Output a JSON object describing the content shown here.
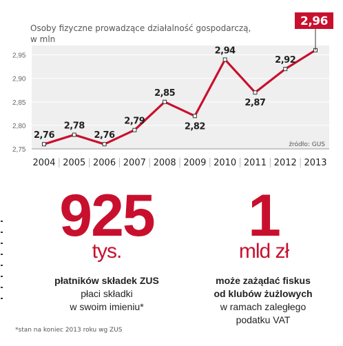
{
  "chart_data": {
    "type": "line",
    "title": "Osoby fizyczne prowadzące działalność gospodarczą,",
    "subtitle": "w mln",
    "x": [
      "2004",
      "2005",
      "2006",
      "2007",
      "2008",
      "2009",
      "2010",
      "2011",
      "2012",
      "2013"
    ],
    "values": [
      2.76,
      2.78,
      2.76,
      2.79,
      2.85,
      2.82,
      2.94,
      2.87,
      2.92,
      2.96
    ],
    "value_labels": [
      "2,76",
      "2,78",
      "2,76",
      "2,79",
      "2,85",
      "2,82",
      "2,94",
      "2,87",
      "2,92",
      "2,96"
    ],
    "ylim": [
      2.75,
      2.97
    ],
    "yticks": [
      2.75,
      2.8,
      2.85,
      2.9,
      2.95
    ],
    "ytick_labels": [
      "2,75",
      "2,80",
      "2,85",
      "2,90",
      "2,95"
    ],
    "grid": true,
    "line_color": "#c8102e",
    "highlight_last": true,
    "source": "źródło: GUS"
  },
  "stats": [
    {
      "number": "925",
      "unit": "tys.",
      "line1": "płatników składek ZUS",
      "line2": "płaci składki",
      "line3": "w swoim imieniu*"
    },
    {
      "number": "1",
      "unit": "mld zł",
      "line1": "może zażądać fiskus",
      "line2": "od klubów żużlowych",
      "line3": "w ramach zaległego",
      "line4": "podatku VAT"
    }
  ],
  "footnote": "*stan na koniec 2013 roku wg ZUS",
  "colors": {
    "accent": "#c8102e",
    "plot_bg": "#efefef"
  }
}
